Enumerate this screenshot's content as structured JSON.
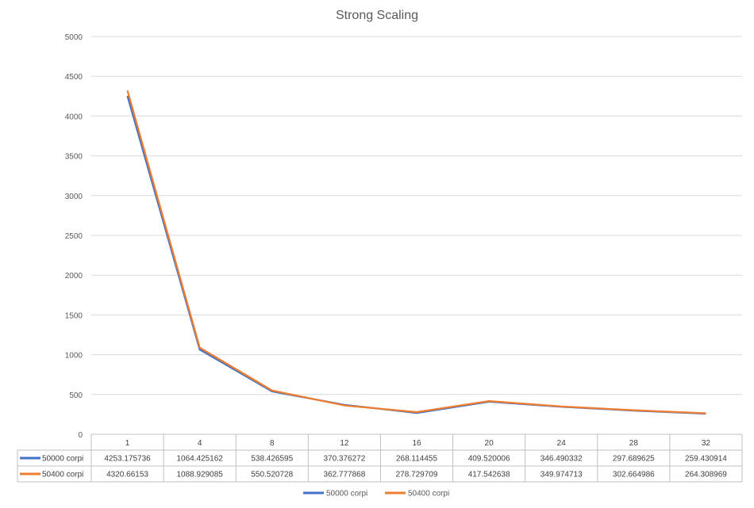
{
  "chart_data": {
    "type": "line",
    "title": "Strong Scaling",
    "xlabel": "",
    "ylabel": "",
    "categories": [
      "1",
      "4",
      "8",
      "12",
      "16",
      "20",
      "24",
      "28",
      "32"
    ],
    "ylim": [
      0,
      5000
    ],
    "yticks": [
      "0",
      "500",
      "1000",
      "1500",
      "2000",
      "2500",
      "3000",
      "3500",
      "4000",
      "4500",
      "5000"
    ],
    "grid": true,
    "legend": "bottom",
    "series": [
      {
        "name": "50000 corpi",
        "color": "#4472C4",
        "values": [
          4253.175736,
          1064.425162,
          538.426595,
          370.376272,
          268.114455,
          409.520006,
          346.490332,
          297.689625,
          259.430914
        ],
        "labels": [
          "4253.175736",
          "1064.425162",
          "538.426595",
          "370.376272",
          "268.114455",
          "409.520006",
          "346.490332",
          "297.689625",
          "259.430914"
        ]
      },
      {
        "name": "50400 corpi",
        "color": "#ED7D31",
        "values": [
          4320.66153,
          1088.929085,
          550.520728,
          362.777868,
          278.729709,
          417.542638,
          349.974713,
          302.664986,
          264.308969
        ],
        "labels": [
          "4320.66153",
          "1088.929085",
          "550.520728",
          "362.777868",
          "278.729709",
          "417.542638",
          "349.974713",
          "302.664986",
          "264.308969"
        ]
      }
    ]
  }
}
